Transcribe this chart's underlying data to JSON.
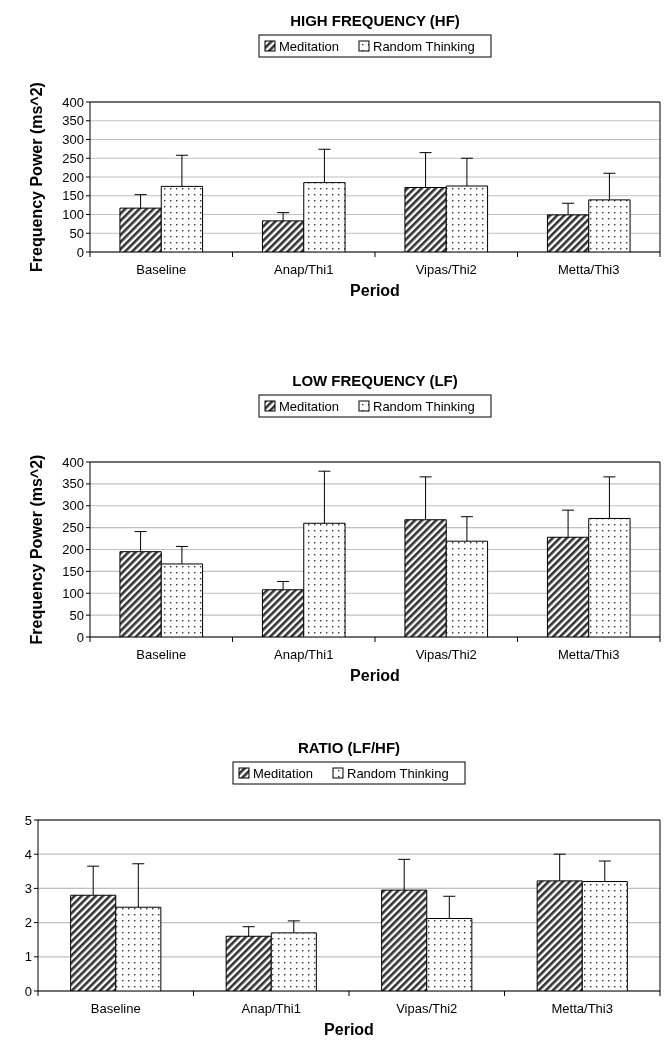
{
  "chart_data": [
    {
      "type": "bar",
      "title": "HIGH FREQUENCY (HF)",
      "xlabel": "Period",
      "ylabel": "Frequency Power (ms^2)",
      "categories": [
        "Baseline",
        "Anap/Thi1",
        "Vipas/Thi2",
        "Metta/Thi3"
      ],
      "series": [
        {
          "name": "Meditation",
          "color": "#333333",
          "values": [
            117,
            83,
            172,
            99
          ],
          "errors": [
            [
              117,
              153
            ],
            [
              83,
              105
            ],
            [
              172,
              265
            ],
            [
              99,
              130
            ]
          ]
        },
        {
          "name": "Random Thinking",
          "color": "#ffffff",
          "values": [
            175,
            185,
            176,
            139
          ],
          "errors": [
            [
              175,
              258
            ],
            [
              185,
              274
            ],
            [
              176,
              250
            ],
            [
              139,
              210
            ]
          ]
        }
      ],
      "ylim": [
        0,
        400
      ],
      "yticks": [
        0,
        50,
        100,
        150,
        200,
        250,
        300,
        350,
        400
      ],
      "grid": "y",
      "legend": "top"
    },
    {
      "type": "bar",
      "title": "LOW FREQUENCY (LF)",
      "xlabel": "Period",
      "ylabel": "Frequency Power (ms^2)",
      "categories": [
        "Baseline",
        "Anap/Thi1",
        "Vipas/Thi2",
        "Metta/Thi3"
      ],
      "series": [
        {
          "name": "Meditation",
          "color": "#333333",
          "values": [
            195,
            108,
            268,
            228
          ],
          "errors": [
            [
              195,
              241
            ],
            [
              108,
              127
            ],
            [
              268,
              366
            ],
            [
              228,
              290
            ]
          ]
        },
        {
          "name": "Random Thinking",
          "color": "#ffffff",
          "values": [
            167,
            260,
            219,
            271
          ],
          "errors": [
            [
              167,
              207
            ],
            [
              260,
              379
            ],
            [
              219,
              275
            ],
            [
              271,
              366
            ]
          ]
        }
      ],
      "ylim": [
        0,
        400
      ],
      "yticks": [
        0,
        50,
        100,
        150,
        200,
        250,
        300,
        350,
        400
      ],
      "grid": "y",
      "legend": "top"
    },
    {
      "type": "bar",
      "title": "RATIO (LF/HF)",
      "xlabel": "Period",
      "categories": [
        "Baseline",
        "Anap/Thi1",
        "Vipas/Thi2",
        "Metta/Thi3"
      ],
      "series": [
        {
          "name": "Meditation",
          "color": "#333333",
          "values": [
            2.8,
            1.6,
            2.95,
            3.22
          ],
          "errors": [
            [
              2.8,
              3.65
            ],
            [
              1.6,
              1.88
            ],
            [
              2.95,
              3.85
            ],
            [
              3.22,
              4.0
            ]
          ]
        },
        {
          "name": "Random Thinking",
          "color": "#ffffff",
          "values": [
            2.45,
            1.7,
            2.12,
            3.2
          ],
          "errors": [
            [
              2.45,
              3.72
            ],
            [
              1.7,
              2.05
            ],
            [
              2.12,
              2.77
            ],
            [
              3.2,
              3.8
            ]
          ]
        }
      ],
      "ylim": [
        0,
        5
      ],
      "yticks": [
        0,
        1,
        2,
        3,
        4,
        5
      ],
      "grid": "y",
      "legend": "top"
    }
  ]
}
